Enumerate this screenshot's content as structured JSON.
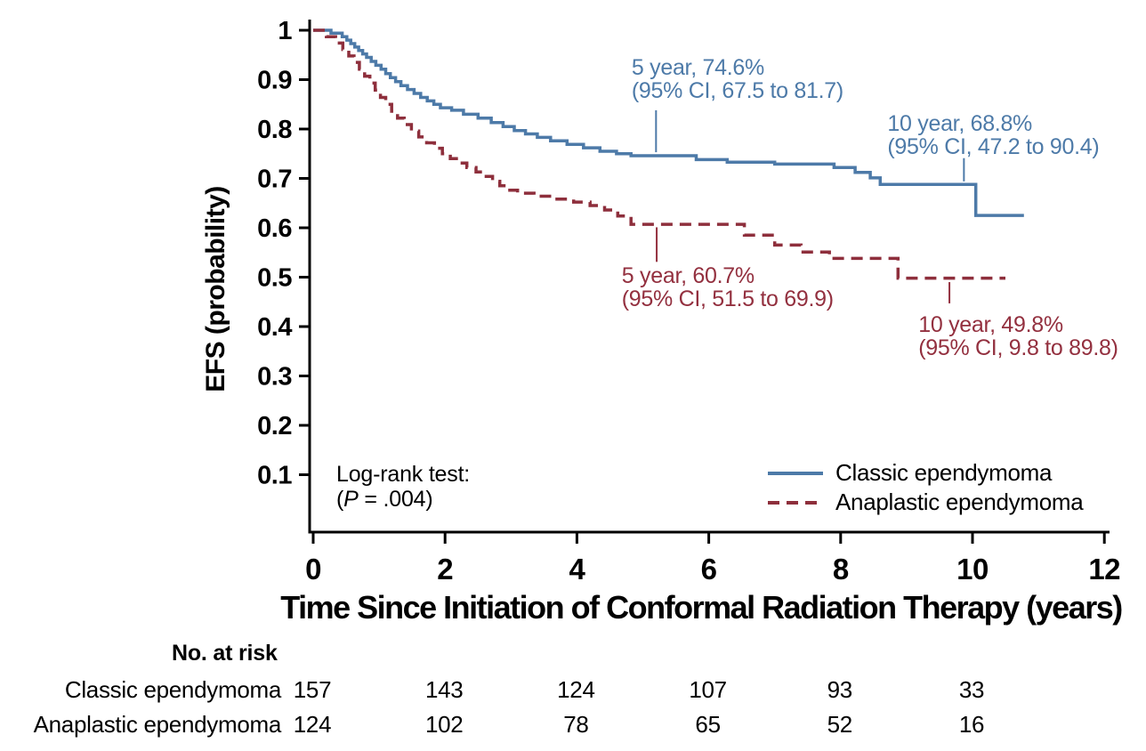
{
  "chart_data": {
    "type": "line",
    "subtype": "kaplan-meier-step",
    "title": "",
    "xlabel": "Time Since Initiation of Conformal Radiation Therapy (years)",
    "ylabel": "EFS (probability)",
    "x_ticks": [
      0,
      2,
      4,
      6,
      8,
      10,
      12
    ],
    "y_ticks": [
      {
        "value": 1.0,
        "label": "1"
      },
      {
        "value": 0.9,
        "label": "0.9"
      },
      {
        "value": 0.8,
        "label": "0.8"
      },
      {
        "value": 0.7,
        "label": "0.7"
      },
      {
        "value": 0.6,
        "label": "0.6"
      },
      {
        "value": 0.5,
        "label": "0.5"
      },
      {
        "value": 0.4,
        "label": "0.4"
      },
      {
        "value": 0.3,
        "label": "0.3"
      },
      {
        "value": 0.2,
        "label": "0.2"
      },
      {
        "value": 0.1,
        "label": "0.1"
      }
    ],
    "xlim": [
      0,
      12
    ],
    "ylim": [
      0,
      1.0
    ],
    "series": [
      {
        "name": "Classic ependymoma",
        "color": "#4d7aa8",
        "line_style": "solid",
        "end_year": 10.78,
        "points": [
          [
            0,
            1.0
          ],
          [
            0.27,
            0.994
          ],
          [
            0.44,
            0.987
          ],
          [
            0.51,
            0.98
          ],
          [
            0.57,
            0.973
          ],
          [
            0.63,
            0.966
          ],
          [
            0.69,
            0.959
          ],
          [
            0.75,
            0.952
          ],
          [
            0.81,
            0.945
          ],
          [
            0.88,
            0.937
          ],
          [
            0.95,
            0.929
          ],
          [
            1.03,
            0.921
          ],
          [
            1.1,
            0.912
          ],
          [
            1.17,
            0.904
          ],
          [
            1.25,
            0.896
          ],
          [
            1.33,
            0.888
          ],
          [
            1.43,
            0.88
          ],
          [
            1.53,
            0.872
          ],
          [
            1.63,
            0.864
          ],
          [
            1.73,
            0.857
          ],
          [
            1.83,
            0.85
          ],
          [
            1.93,
            0.843
          ],
          [
            2.1,
            0.838
          ],
          [
            2.28,
            0.83
          ],
          [
            2.5,
            0.822
          ],
          [
            2.7,
            0.813
          ],
          [
            2.88,
            0.805
          ],
          [
            3.05,
            0.797
          ],
          [
            3.22,
            0.79
          ],
          [
            3.4,
            0.783
          ],
          [
            3.6,
            0.776
          ],
          [
            3.85,
            0.769
          ],
          [
            4.1,
            0.762
          ],
          [
            4.35,
            0.755
          ],
          [
            4.6,
            0.75
          ],
          [
            4.82,
            0.746
          ],
          [
            5.81,
            0.738
          ],
          [
            6.28,
            0.733
          ],
          [
            7.0,
            0.729
          ],
          [
            7.9,
            0.722
          ],
          [
            8.22,
            0.712
          ],
          [
            8.45,
            0.701
          ],
          [
            8.6,
            0.688
          ],
          [
            10.05,
            0.625
          ]
        ]
      },
      {
        "name": "Anaplastic ependymoma",
        "color": "#8e2f3c",
        "line_style": "dashed",
        "end_year": 10.5,
        "points": [
          [
            0,
            1.0
          ],
          [
            0.2,
            0.987
          ],
          [
            0.34,
            0.974
          ],
          [
            0.45,
            0.961
          ],
          [
            0.54,
            0.948
          ],
          [
            0.62,
            0.935
          ],
          [
            0.7,
            0.921
          ],
          [
            0.78,
            0.907
          ],
          [
            0.86,
            0.893
          ],
          [
            0.94,
            0.879
          ],
          [
            1.02,
            0.864
          ],
          [
            1.1,
            0.85
          ],
          [
            1.19,
            0.836
          ],
          [
            1.28,
            0.822
          ],
          [
            1.38,
            0.809
          ],
          [
            1.49,
            0.796
          ],
          [
            1.6,
            0.784
          ],
          [
            1.72,
            0.772
          ],
          [
            1.84,
            0.761
          ],
          [
            1.96,
            0.75
          ],
          [
            2.08,
            0.74
          ],
          [
            2.2,
            0.731
          ],
          [
            2.33,
            0.722
          ],
          [
            2.47,
            0.713
          ],
          [
            2.6,
            0.704
          ],
          [
            2.72,
            0.694
          ],
          [
            2.83,
            0.685
          ],
          [
            2.94,
            0.676
          ],
          [
            3.1,
            0.67
          ],
          [
            3.35,
            0.664
          ],
          [
            3.65,
            0.658
          ],
          [
            3.95,
            0.652
          ],
          [
            4.2,
            0.645
          ],
          [
            4.42,
            0.636
          ],
          [
            4.62,
            0.624
          ],
          [
            4.82,
            0.607
          ],
          [
            6.54,
            0.585
          ],
          [
            7.0,
            0.565
          ],
          [
            7.4,
            0.551
          ],
          [
            7.83,
            0.538
          ],
          [
            8.87,
            0.498
          ]
        ]
      }
    ],
    "annotations": [
      {
        "series": "Classic ependymoma",
        "color": "#4d7aa8",
        "lines": [
          "5 year, 74.6%",
          "(95% CI, 67.5 to 81.7)"
        ],
        "text_year": 4.83,
        "text_prob": 0.948,
        "leader_year": 5.2,
        "leader_from_prob": 0.838,
        "leader_to_prob": 0.753
      },
      {
        "series": "Classic ependymoma",
        "color": "#4d7aa8",
        "lines": [
          "10 year, 68.8%",
          "(95% CI, 47.2 to 90.4)"
        ],
        "text_year": 8.71,
        "text_prob": 0.834,
        "leader_year": 9.87,
        "leader_from_prob": 0.741,
        "leader_to_prob": 0.694
      },
      {
        "series": "Anaplastic ependymoma",
        "color": "#93303f",
        "lines": [
          "5 year, 60.7%",
          "(95% CI, 51.5 to 69.9)"
        ],
        "text_year": 4.68,
        "text_prob": 0.526,
        "leader_year": 5.21,
        "leader_from_prob": 0.601,
        "leader_to_prob": 0.531
      },
      {
        "series": "Anaplastic ependymoma",
        "color": "#93303f",
        "lines": [
          "10 year, 49.8%",
          "(95% CI, 9.8 to 89.8)"
        ],
        "text_year": 9.18,
        "text_prob": 0.427,
        "leader_year": 9.65,
        "leader_from_prob": 0.49,
        "leader_to_prob": 0.447
      }
    ],
    "legend": {
      "position": "lower-right-inside",
      "items": [
        {
          "label": "Classic ependymoma",
          "style": "solid",
          "color": "#4d7aa8"
        },
        {
          "label": "Anaplastic ependymoma",
          "style": "dashed",
          "color": "#8e2f3c"
        }
      ]
    },
    "stats_note": {
      "line1": "Log-rank test:",
      "paren_open": "(",
      "p_symbol": "P",
      "p_rest": " = .004)"
    }
  },
  "risk_table": {
    "header": "No. at risk",
    "time_points": [
      0,
      2,
      4,
      6,
      8,
      10
    ],
    "rows": [
      {
        "label": "Classic ependymoma",
        "values": [
          157,
          143,
          124,
          107,
          93,
          33
        ]
      },
      {
        "label": "Anaplastic ependymoma",
        "values": [
          124,
          102,
          78,
          65,
          52,
          16
        ]
      }
    ]
  }
}
